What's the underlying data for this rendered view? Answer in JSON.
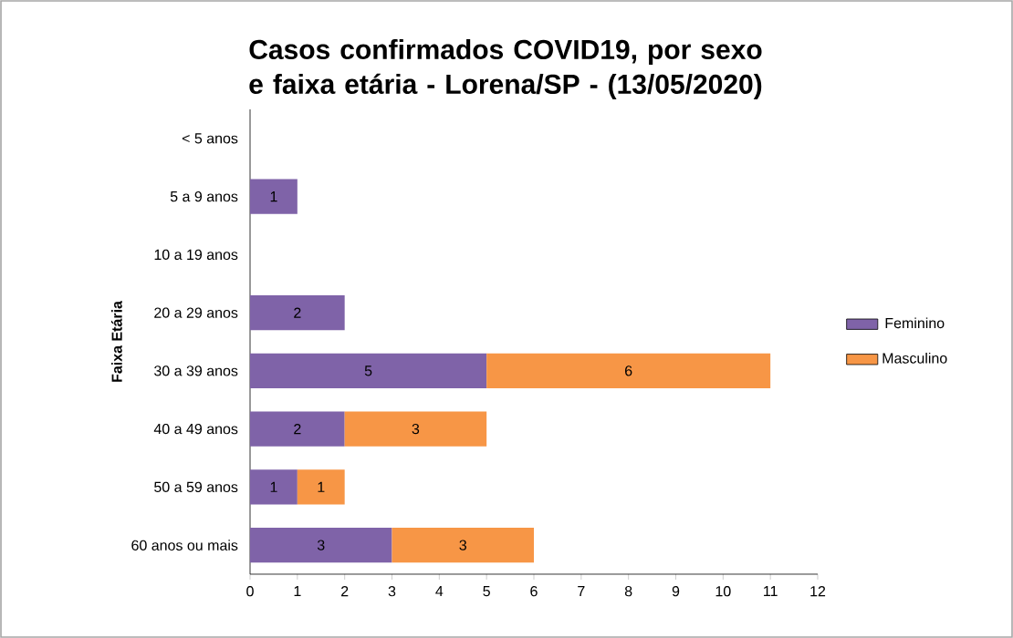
{
  "chart_data": {
    "type": "bar",
    "orientation": "horizontal",
    "stacked": true,
    "title": "Casos confirmados COVID19, por sexo e faixa etária - Lorena/SP - (13/05/2020)",
    "ylabel": "Faixa Etária",
    "categories": [
      "< 5 anos",
      "5 a 9 anos",
      "10 a 19 anos",
      "20 a 29 anos",
      "30 a 39 anos",
      "40 a 49 anos",
      "50 a 59 anos",
      "60 anos ou mais"
    ],
    "series": [
      {
        "name": "Feminino",
        "color": "#7f63a8",
        "values": [
          null,
          1,
          null,
          2,
          5,
          2,
          1,
          3
        ]
      },
      {
        "name": "Masculino",
        "color": "#f79646",
        "values": [
          null,
          null,
          null,
          null,
          6,
          3,
          1,
          3
        ]
      }
    ],
    "xlim": [
      0,
      12
    ],
    "xticks": [
      0,
      1,
      2,
      3,
      4,
      5,
      6,
      7,
      8,
      9,
      10,
      11,
      12
    ],
    "grid": false,
    "legend": "right",
    "data_labels": true
  }
}
